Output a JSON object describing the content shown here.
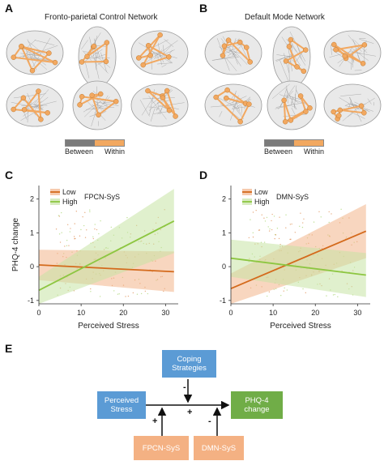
{
  "panels": {
    "A": {
      "letter": "A",
      "title": "Fronto-parietal Control Network"
    },
    "B": {
      "letter": "B",
      "title": "Default Mode Network"
    },
    "C": {
      "letter": "C"
    },
    "D": {
      "letter": "D"
    },
    "E": {
      "letter": "E"
    }
  },
  "brain_legend": {
    "between": "Between",
    "within": "Within",
    "colors": {
      "between": "#7b7b7b",
      "within": "#f2a860"
    }
  },
  "colors": {
    "low": "#d46a1c",
    "high": "#8dc641",
    "low_fill": "#f2b48a",
    "high_fill": "#c6e3a4"
  },
  "chart_data": [
    {
      "type": "line",
      "panel": "C",
      "legend_title": "FPCN-SyS",
      "legend_entries": [
        "Low",
        "High"
      ],
      "xlabel": "Perceived Stress",
      "ylabel": "PHQ-4 change",
      "xlim": [
        0,
        33
      ],
      "ylim": [
        -1.1,
        2.4
      ],
      "xticks": [
        0,
        10,
        20,
        30
      ],
      "yticks": [
        -1,
        0,
        1,
        2
      ],
      "series": [
        {
          "name": "Low",
          "x": [
            0,
            32
          ],
          "y": [
            0.05,
            -0.15
          ],
          "band_lower": [
            -0.4,
            -0.75
          ],
          "band_upper": [
            0.5,
            0.45
          ]
        },
        {
          "name": "High",
          "x": [
            0,
            32
          ],
          "y": [
            -0.7,
            1.35
          ],
          "band_lower": [
            -1.1,
            0.4
          ],
          "band_upper": [
            -0.3,
            2.3
          ]
        }
      ]
    },
    {
      "type": "line",
      "panel": "D",
      "legend_title": "DMN-SyS",
      "legend_entries": [
        "Low",
        "High"
      ],
      "xlabel": "Perceived Stress",
      "ylabel": "",
      "xlim": [
        0,
        33
      ],
      "ylim": [
        -1.1,
        2.4
      ],
      "xticks": [
        0,
        10,
        20,
        30
      ],
      "yticks": [
        -1,
        0,
        1,
        2
      ],
      "series": [
        {
          "name": "Low",
          "x": [
            0,
            32
          ],
          "y": [
            -0.65,
            1.05
          ],
          "band_lower": [
            -1.1,
            0.25
          ],
          "band_upper": [
            -0.2,
            1.85
          ]
        },
        {
          "name": "High",
          "x": [
            0,
            32
          ],
          "y": [
            0.25,
            -0.25
          ],
          "band_lower": [
            -0.3,
            -0.9
          ],
          "band_upper": [
            0.8,
            0.4
          ]
        }
      ]
    }
  ],
  "diagram": {
    "coping": "Coping\nStrategies",
    "stress": "Perceived\nStress",
    "phq": "PHQ-4\nchange",
    "fpcn": "FPCN-SyS",
    "dmn": "DMN-SyS",
    "sign_coping": "-",
    "sign_path": "+",
    "sign_fpcn": "+",
    "sign_dmn": "-"
  }
}
